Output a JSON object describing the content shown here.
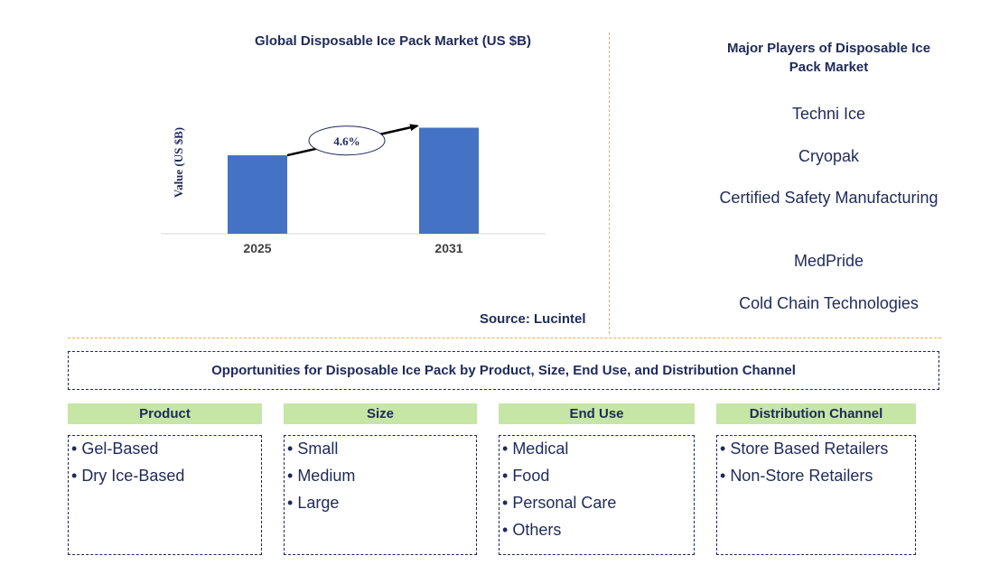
{
  "chart_data": {
    "type": "bar",
    "title": "Global Disposable Ice Pack Market (US $B)",
    "ylabel": "Value (US $B)",
    "xlabel": "",
    "categories": [
      "2025",
      "2031"
    ],
    "values": [
      0.74,
      1.0
    ],
    "ylim": [
      0,
      1.2
    ],
    "grid": false,
    "colors": {
      "bar": "#4472c4"
    },
    "annotation": {
      "type": "growth-arrow",
      "text": "4.6%"
    }
  },
  "source": "Source: Lucintel",
  "players": {
    "title": "Major Players of Disposable Ice Pack Market",
    "items": [
      "Techni Ice",
      "Cryopak",
      "Certified Safety Manufacturing",
      "MedPride",
      "Cold Chain Technologies"
    ]
  },
  "opportunities": {
    "title": "Opportunities for Disposable Ice Pack by Product, Size, End Use, and Distribution Channel",
    "columns": [
      {
        "header": "Product",
        "items": [
          "Gel-Based",
          "Dry Ice-Based"
        ]
      },
      {
        "header": "Size",
        "items": [
          "Small",
          "Medium",
          "Large"
        ]
      },
      {
        "header": "End Use",
        "items": [
          "Medical",
          "Food",
          "Personal Care",
          "Others"
        ]
      },
      {
        "header": "Distribution Channel",
        "items": [
          "Store Based Retailers",
          "Non-Store Retailers"
        ]
      }
    ]
  },
  "colors": {
    "text": "#1f2a5a",
    "bar": "#4472c4",
    "divider": "#f0b030",
    "header_bg": "#c6e6a5"
  }
}
